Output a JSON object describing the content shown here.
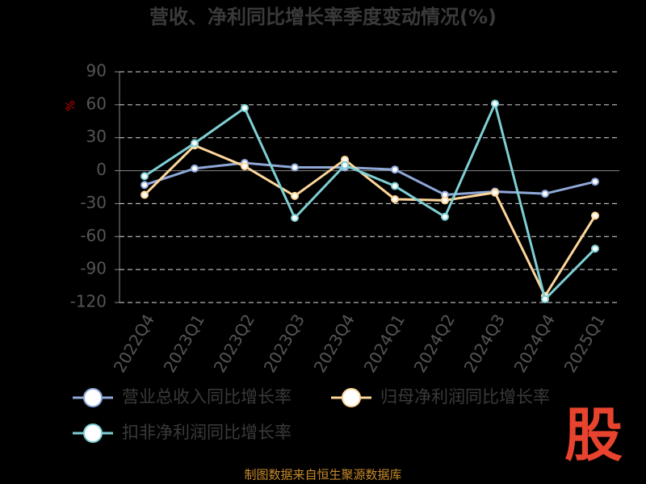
{
  "chart_data": {
    "type": "line",
    "title": "营收、净利同比增长率季度变动情况(%)",
    "y_label": "%",
    "categories": [
      "2022Q4",
      "2023Q1",
      "2023Q2",
      "2023Q3",
      "2023Q4",
      "2024Q1",
      "2024Q2",
      "2024Q3",
      "2024Q4",
      "2025Q1"
    ],
    "series": [
      {
        "name": "营业总收入同比增长率",
        "color": "#8fa8d8",
        "values": [
          -13,
          2,
          7,
          3,
          3,
          1,
          -22,
          -19,
          -21,
          -10
        ]
      },
      {
        "name": "归母净利润同比增长率",
        "color": "#fdd69a",
        "values": [
          -22,
          23,
          4,
          -23,
          10,
          -26,
          -27,
          -20,
          -114,
          -41
        ]
      },
      {
        "name": "扣非净利润同比增长率",
        "color": "#7ecfd4",
        "values": [
          -5,
          25,
          57,
          -43,
          5,
          -14,
          -42,
          61,
          -117,
          -71
        ]
      }
    ],
    "ylim": [
      -120,
      90
    ],
    "yticks": [
      -120,
      -90,
      -60,
      -30,
      0,
      30,
      60,
      90
    ],
    "grid": true
  },
  "logo": "股",
  "footer": "制图数据来自恒生聚源数据库"
}
